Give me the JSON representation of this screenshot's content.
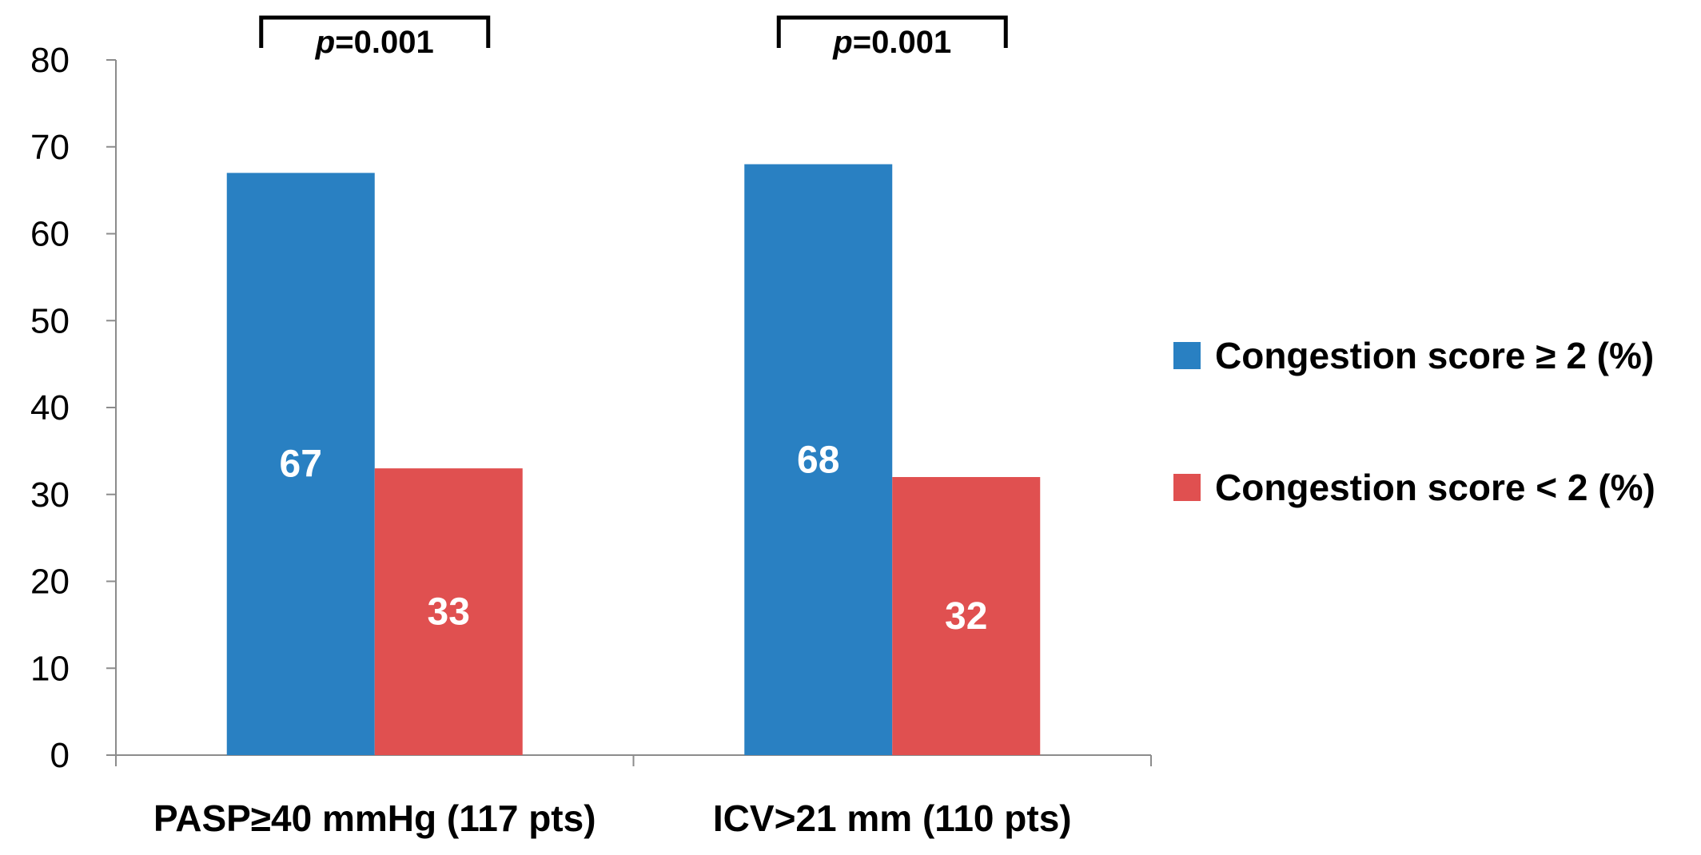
{
  "chart_data": {
    "type": "bar",
    "title": "",
    "xlabel": "",
    "ylabel": "",
    "ylim": [
      0,
      80
    ],
    "yticks": [
      0,
      10,
      20,
      30,
      40,
      50,
      60,
      70,
      80
    ],
    "grid": false,
    "legend_position": "right",
    "categories": [
      "PASP≥40 mmHg (117 pts)",
      "ICV>21 mm (110 pts)"
    ],
    "series": [
      {
        "name": "Congestion score ≥ 2 (%)",
        "color": "#2980c2",
        "values": [
          67,
          68
        ]
      },
      {
        "name": "Congestion score < 2 (%)",
        "color": "#e05050",
        "values": [
          33,
          32
        ]
      }
    ],
    "annotations": [
      {
        "category_index": 0,
        "prefix": "p",
        "text": "=0.001"
      },
      {
        "category_index": 1,
        "prefix": "p",
        "text": "=0.001"
      }
    ]
  }
}
